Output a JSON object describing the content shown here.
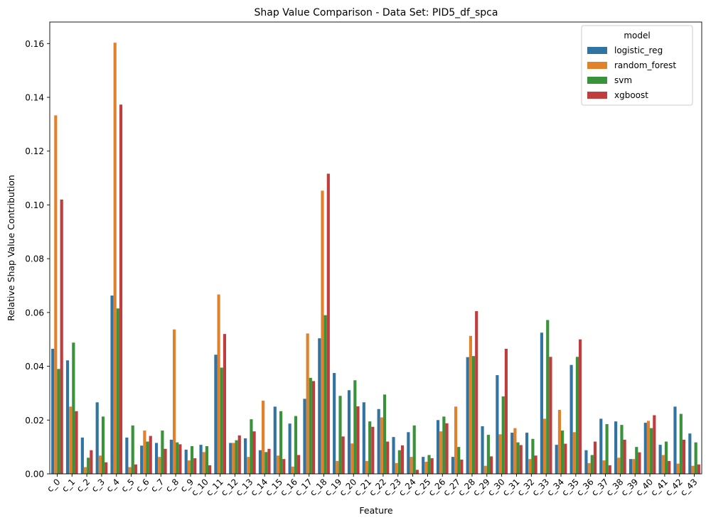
{
  "chart_data": {
    "type": "bar",
    "title": "Shap Value Comparison - Data Set: PID5_df_spca",
    "xlabel": "Feature",
    "ylabel": "Relative Shap Value Contribution",
    "ylim": [
      0,
      0.168
    ],
    "yticks": [
      "0.00",
      "0.02",
      "0.04",
      "0.06",
      "0.08",
      "0.10",
      "0.12",
      "0.14",
      "0.16"
    ],
    "grid": false,
    "legend": {
      "title": "model",
      "placement": "top-right"
    },
    "categories": [
      "c_0",
      "c_1",
      "c_2",
      "c_3",
      "c_4",
      "c_5",
      "c_6",
      "c_7",
      "c_8",
      "c_9",
      "c_10",
      "c_11",
      "c_12",
      "c_13",
      "c_14",
      "c_15",
      "c_16",
      "c_17",
      "c_18",
      "c_19",
      "c_20",
      "c_21",
      "c_22",
      "c_23",
      "c_24",
      "c_25",
      "c_26",
      "c_27",
      "c_28",
      "c_29",
      "c_30",
      "c_31",
      "c_32",
      "c_33",
      "c_34",
      "c_35",
      "c_36",
      "c_37",
      "c_38",
      "c_39",
      "c_40",
      "c_41",
      "c_42",
      "c_43"
    ],
    "series": [
      {
        "name": "logistic_reg",
        "color": "#3274a1",
        "values": [
          0.0465,
          0.0422,
          0.0135,
          0.0266,
          0.0663,
          0.0135,
          0.0105,
          0.0115,
          0.0127,
          0.009,
          0.0108,
          0.0443,
          0.0115,
          0.0132,
          0.0088,
          0.025,
          0.0187,
          0.0279,
          0.0504,
          0.0375,
          0.0311,
          0.0266,
          0.0241,
          0.0137,
          0.0155,
          0.0063,
          0.02,
          0.0063,
          0.0434,
          0.0177,
          0.0367,
          0.0153,
          0.0153,
          0.0525,
          0.0108,
          0.0405,
          0.0088,
          0.0205,
          0.0195,
          0.0055,
          0.019,
          0.0108,
          0.025,
          0.015
        ]
      },
      {
        "name": "random_forest",
        "color": "#e1812c",
        "values": [
          0.1333,
          0.025,
          0.0025,
          0.0068,
          0.1603,
          0.0025,
          0.0161,
          0.0063,
          0.0537,
          0.005,
          0.0081,
          0.0667,
          0.0115,
          0.0063,
          0.0272,
          0.0068,
          0.0027,
          0.0522,
          0.1053,
          0.0048,
          0.0113,
          0.0048,
          0.021,
          0.004,
          0.0063,
          0.0045,
          0.0158,
          0.025,
          0.0513,
          0.003,
          0.0147,
          0.017,
          0.0055,
          0.0205,
          0.0238,
          0.0155,
          0.004,
          0.005,
          0.006,
          0.0055,
          0.0197,
          0.007,
          0.0038,
          0.003
        ]
      },
      {
        "name": "svm",
        "color": "#3a923a",
        "values": [
          0.039,
          0.0488,
          0.006,
          0.0213,
          0.0615,
          0.018,
          0.012,
          0.0161,
          0.0117,
          0.0103,
          0.0103,
          0.0395,
          0.0125,
          0.0203,
          0.0081,
          0.0233,
          0.0215,
          0.0357,
          0.059,
          0.029,
          0.0348,
          0.0195,
          0.0295,
          0.0088,
          0.018,
          0.007,
          0.0213,
          0.01,
          0.0438,
          0.0145,
          0.0288,
          0.0117,
          0.013,
          0.0572,
          0.0161,
          0.0435,
          0.007,
          0.0185,
          0.0182,
          0.01,
          0.017,
          0.012,
          0.0223,
          0.0117
        ]
      },
      {
        "name": "xgboost",
        "color": "#c03d3e",
        "values": [
          0.102,
          0.0233,
          0.0088,
          0.0043,
          0.1373,
          0.0035,
          0.0141,
          0.0093,
          0.011,
          0.0058,
          0.0032,
          0.052,
          0.0143,
          0.0158,
          0.0093,
          0.0055,
          0.007,
          0.0345,
          0.1116,
          0.0139,
          0.0251,
          0.0175,
          0.012,
          0.0106,
          0.0015,
          0.0058,
          0.0188,
          0.0053,
          0.0605,
          0.0065,
          0.0465,
          0.0107,
          0.0068,
          0.0435,
          0.0112,
          0.05,
          0.012,
          0.0032,
          0.0127,
          0.008,
          0.0218,
          0.0048,
          0.0127,
          0.0035
        ]
      }
    ]
  }
}
